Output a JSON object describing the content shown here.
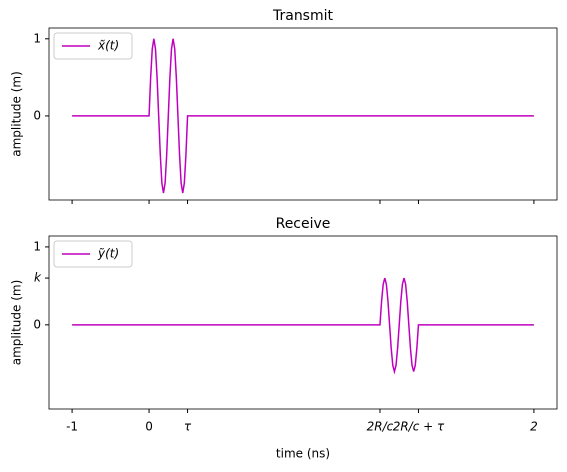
{
  "chart_data": [
    {
      "type": "line",
      "title": "Transmit",
      "y_label": "amplitude (m)",
      "x": [
        -1,
        -0.5,
        -0.4896,
        -0.4792,
        -0.4688,
        -0.4583,
        -0.4479,
        -0.4375,
        -0.4271,
        -0.4167,
        -0.4063,
        -0.3958,
        -0.3854,
        -0.375,
        -0.3646,
        -0.3542,
        -0.3438,
        -0.3333,
        -0.3229,
        -0.3125,
        -0.3021,
        -0.2917,
        -0.2813,
        -0.2708,
        -0.2604,
        -0.25,
        2
      ],
      "series": [
        {
          "name": "x̃(t)",
          "color": "#bf00bf",
          "values": [
            0,
            0,
            0.5,
            0.87,
            1,
            0.87,
            0.5,
            0,
            -0.5,
            -0.87,
            -1,
            -0.87,
            -0.5,
            0,
            0.5,
            0.87,
            1,
            0.87,
            0.5,
            0,
            -0.5,
            -0.87,
            -1,
            -0.87,
            -0.5,
            0,
            0
          ]
        }
      ],
      "xlim": [
        -1.15,
        2.15
      ],
      "ylim": [
        -1.09,
        1.14
      ],
      "yticks": [
        0,
        1
      ],
      "legend": "upper left"
    },
    {
      "type": "line",
      "title": "Receive",
      "y_label": "amplitude (m)",
      "x_label": "time (ns)",
      "x": [
        -1,
        1,
        1.0104,
        1.0208,
        1.0313,
        1.0417,
        1.0521,
        1.0625,
        1.0729,
        1.0833,
        1.0938,
        1.1042,
        1.1146,
        1.125,
        1.1354,
        1.1458,
        1.1563,
        1.1667,
        1.1771,
        1.1875,
        1.1979,
        1.2083,
        1.2188,
        1.2292,
        1.2396,
        1.25,
        2
      ],
      "series": [
        {
          "name": "ỹ(t)",
          "color": "#bf00bf",
          "values": [
            0,
            0,
            0.3,
            0.52,
            0.6,
            0.52,
            0.3,
            0,
            -0.3,
            -0.52,
            -0.6,
            -0.52,
            -0.3,
            0,
            0.3,
            0.52,
            0.6,
            0.52,
            0.3,
            0,
            -0.3,
            -0.52,
            -0.6,
            -0.52,
            -0.3,
            0,
            0
          ]
        }
      ],
      "xlim": [
        -1.15,
        2.15
      ],
      "ylim": [
        -1.08,
        1.14
      ],
      "yticks": [
        0,
        {
          "value": 0.6,
          "label": "k"
        },
        1
      ],
      "xticks": [
        {
          "value": -1,
          "label": "-1"
        },
        {
          "value": -0.5,
          "label": "0"
        },
        {
          "value": -0.25,
          "label": "τ"
        },
        {
          "value": 1,
          "label": "2R/c"
        },
        {
          "value": 1.25,
          "label": "2R/c + τ"
        },
        {
          "value": 2,
          "label": "2"
        }
      ],
      "legend": "upper left"
    }
  ]
}
